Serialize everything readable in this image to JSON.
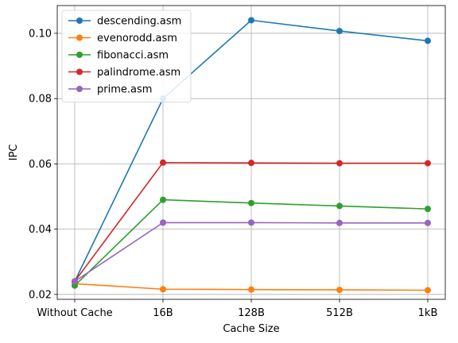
{
  "chart_data": {
    "type": "line",
    "title": "",
    "xlabel": "Cache Size",
    "ylabel": "IPC",
    "categories": [
      "Without Cache",
      "16B",
      "128B",
      "512B",
      "1kB"
    ],
    "ylim": [
      0.0185,
      0.1085
    ],
    "yticks": [
      0.02,
      0.04,
      0.06,
      0.08,
      0.1
    ],
    "ytick_labels": [
      "0.02",
      "0.04",
      "0.06",
      "0.08",
      "0.10"
    ],
    "grid": true,
    "legend_position": "top-left",
    "marker": "circle",
    "series": [
      {
        "name": "descending.asm",
        "color": "#1f77b4",
        "values": [
          0.024,
          0.08,
          0.104,
          0.1007,
          0.0977
        ]
      },
      {
        "name": "evenorodd.asm",
        "color": "#ff7f0e",
        "values": [
          0.0233,
          0.0216,
          0.0215,
          0.0214,
          0.0213
        ]
      },
      {
        "name": "fibonacci.asm",
        "color": "#2ca02c",
        "values": [
          0.0227,
          0.049,
          0.048,
          0.0471,
          0.0462
        ]
      },
      {
        "name": "palindrome.asm",
        "color": "#d62728",
        "values": [
          0.024,
          0.0604,
          0.0603,
          0.0602,
          0.0602
        ]
      },
      {
        "name": "prime.asm",
        "color": "#9467bd",
        "values": [
          0.024,
          0.042,
          0.042,
          0.0419,
          0.0419
        ]
      }
    ]
  }
}
